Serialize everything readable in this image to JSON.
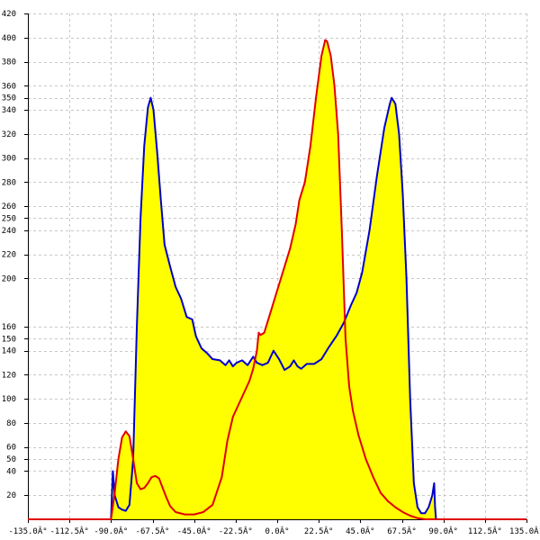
{
  "chart_data": {
    "type": "area",
    "title": "",
    "xlabel": "",
    "ylabel": "",
    "xlim": [
      -135,
      135
    ],
    "ylim": [
      0,
      420
    ],
    "grid": true,
    "x_ticks": [
      {
        "value": -135,
        "label": "-135.0Â°"
      },
      {
        "value": -112.5,
        "label": "-112.5Â°"
      },
      {
        "value": -90,
        "label": "-90.0Â°"
      },
      {
        "value": -67.5,
        "label": "-67.5Â°"
      },
      {
        "value": -45,
        "label": "-45.0Â°"
      },
      {
        "value": -22.5,
        "label": "-22.5Â°"
      },
      {
        "value": 0,
        "label": "0.0Â°"
      },
      {
        "value": 22.5,
        "label": "22.5Â°"
      },
      {
        "value": 45,
        "label": "45.0Â°"
      },
      {
        "value": 67.5,
        "label": "67.5Â°"
      },
      {
        "value": 90,
        "label": "90.0Â°"
      },
      {
        "value": 112.5,
        "label": "112.5Â°"
      },
      {
        "value": 135,
        "label": "135.0Â°"
      }
    ],
    "y_ticks": [
      {
        "value": 20,
        "label": "20"
      },
      {
        "value": 40,
        "label": "40"
      },
      {
        "value": 50,
        "label": "50"
      },
      {
        "value": 60,
        "label": "60"
      },
      {
        "value": 80,
        "label": "80"
      },
      {
        "value": 100,
        "label": "100"
      },
      {
        "value": 120,
        "label": "120"
      },
      {
        "value": 140,
        "label": "140"
      },
      {
        "value": 150,
        "label": "150"
      },
      {
        "value": 160,
        "label": "160"
      },
      {
        "value": 200,
        "label": "200"
      },
      {
        "value": 220,
        "label": "220"
      },
      {
        "value": 240,
        "label": "240"
      },
      {
        "value": 250,
        "label": "250"
      },
      {
        "value": 260,
        "label": "260"
      },
      {
        "value": 280,
        "label": "280"
      },
      {
        "value": 300,
        "label": "300"
      },
      {
        "value": 320,
        "label": "320"
      },
      {
        "value": 340,
        "label": "340"
      },
      {
        "value": 350,
        "label": "350"
      },
      {
        "value": 360,
        "label": "360"
      },
      {
        "value": 380,
        "label": "380"
      },
      {
        "value": 400,
        "label": "400"
      },
      {
        "value": 420,
        "label": "420"
      }
    ],
    "fill_color": "#ffff00",
    "series": [
      {
        "color": "#0000cc",
        "points": [
          [
            -90,
            0
          ],
          [
            -89,
            40
          ],
          [
            -88,
            20
          ],
          [
            -86,
            10
          ],
          [
            -84,
            8
          ],
          [
            -82,
            7
          ],
          [
            -80,
            12
          ],
          [
            -78,
            50
          ],
          [
            -76,
            160
          ],
          [
            -74,
            250
          ],
          [
            -72,
            310
          ],
          [
            -70,
            342
          ],
          [
            -68.5,
            350
          ],
          [
            -67,
            340
          ],
          [
            -65,
            305
          ],
          [
            -63,
            265
          ],
          [
            -61,
            228
          ],
          [
            -58,
            210
          ],
          [
            -55,
            193
          ],
          [
            -52,
            183
          ],
          [
            -49,
            168
          ],
          [
            -46,
            166
          ],
          [
            -44,
            152
          ],
          [
            -41,
            142
          ],
          [
            -38,
            138
          ],
          [
            -35,
            133
          ],
          [
            -31,
            132
          ],
          [
            -28,
            128
          ],
          [
            -26,
            132
          ],
          [
            -24,
            127
          ],
          [
            -22,
            130
          ],
          [
            -19,
            132
          ],
          [
            -16,
            128
          ],
          [
            -13,
            135
          ],
          [
            -11,
            130
          ],
          [
            -8,
            128
          ],
          [
            -5,
            130
          ],
          [
            -2,
            140
          ],
          [
            1,
            133
          ],
          [
            4,
            124
          ],
          [
            7,
            127
          ],
          [
            9,
            132
          ],
          [
            11,
            127
          ],
          [
            13,
            125
          ],
          [
            16,
            129
          ],
          [
            20,
            129
          ],
          [
            24,
            133
          ],
          [
            28,
            143
          ],
          [
            32,
            152
          ],
          [
            36,
            163
          ],
          [
            40,
            178
          ],
          [
            43,
            188
          ],
          [
            46,
            205
          ],
          [
            50,
            240
          ],
          [
            54,
            285
          ],
          [
            58,
            325
          ],
          [
            61,
            345
          ],
          [
            62,
            350
          ],
          [
            64,
            345
          ],
          [
            66,
            320
          ],
          [
            68,
            270
          ],
          [
            70,
            200
          ],
          [
            72,
            100
          ],
          [
            74,
            30
          ],
          [
            76,
            10
          ],
          [
            78,
            5
          ],
          [
            80,
            5
          ],
          [
            82,
            10
          ],
          [
            84,
            20
          ],
          [
            85,
            30
          ],
          [
            85.5,
            10
          ],
          [
            86,
            0
          ]
        ]
      },
      {
        "color": "#e00000",
        "points": [
          [
            -135,
            0
          ],
          [
            -91,
            0
          ],
          [
            -90,
            0
          ],
          [
            -88,
            22
          ],
          [
            -86,
            50
          ],
          [
            -84,
            68
          ],
          [
            -82,
            73
          ],
          [
            -80,
            69
          ],
          [
            -78,
            50
          ],
          [
            -76,
            30
          ],
          [
            -74,
            25
          ],
          [
            -72,
            26
          ],
          [
            -70,
            30
          ],
          [
            -68,
            35
          ],
          [
            -66,
            36
          ],
          [
            -64,
            34
          ],
          [
            -62,
            26
          ],
          [
            -60,
            18
          ],
          [
            -58,
            11
          ],
          [
            -55,
            6
          ],
          [
            -50,
            4
          ],
          [
            -45,
            4
          ],
          [
            -40,
            6
          ],
          [
            -35,
            12
          ],
          [
            -30,
            35
          ],
          [
            -27,
            65
          ],
          [
            -24,
            85
          ],
          [
            -21,
            95
          ],
          [
            -18,
            105
          ],
          [
            -15,
            115
          ],
          [
            -13,
            125
          ],
          [
            -11,
            140
          ],
          [
            -10,
            155
          ],
          [
            -9,
            153
          ],
          [
            -7,
            155
          ],
          [
            -4,
            170
          ],
          [
            0,
            190
          ],
          [
            4,
            210
          ],
          [
            7,
            225
          ],
          [
            10,
            245
          ],
          [
            12,
            265
          ],
          [
            15,
            280
          ],
          [
            18,
            310
          ],
          [
            21,
            350
          ],
          [
            24,
            385
          ],
          [
            26,
            398
          ],
          [
            27,
            397
          ],
          [
            29,
            385
          ],
          [
            31,
            360
          ],
          [
            33,
            320
          ],
          [
            35,
            240
          ],
          [
            37,
            150
          ],
          [
            39,
            110
          ],
          [
            41,
            90
          ],
          [
            44,
            70
          ],
          [
            48,
            50
          ],
          [
            52,
            35
          ],
          [
            56,
            22
          ],
          [
            60,
            15
          ],
          [
            64,
            10
          ],
          [
            68,
            6
          ],
          [
            72,
            3
          ],
          [
            76,
            1
          ],
          [
            80,
            0
          ],
          [
            90,
            0
          ],
          [
            135,
            0
          ]
        ]
      }
    ]
  }
}
